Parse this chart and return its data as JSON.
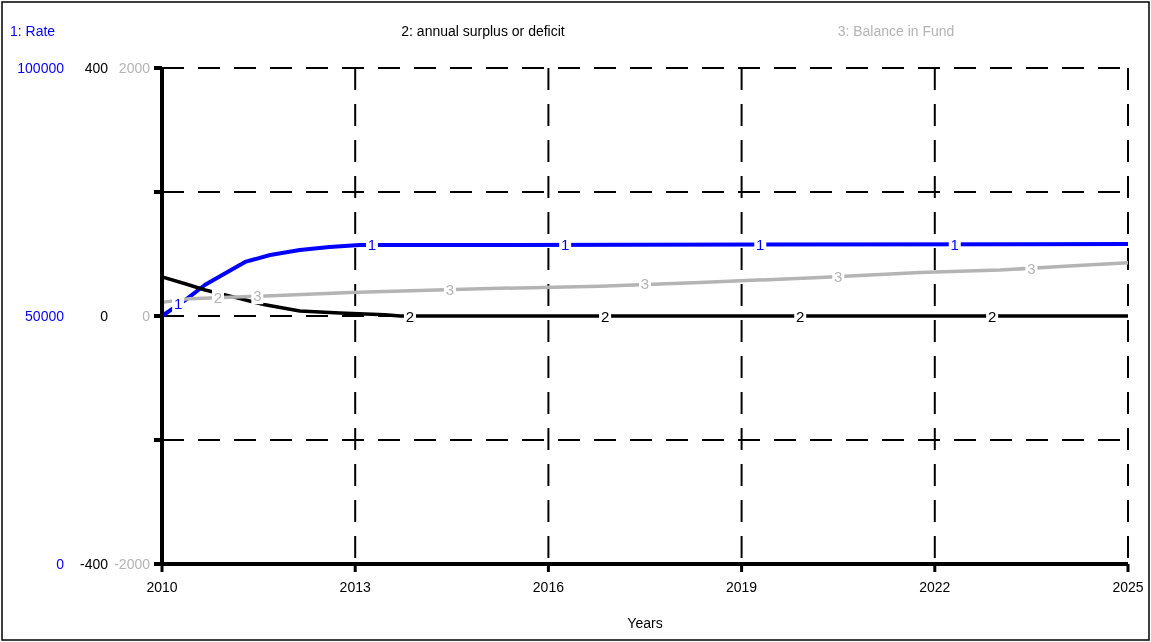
{
  "chart_data": {
    "type": "line",
    "xlabel": "Years",
    "x": [
      2010,
      2010.36,
      2010.67,
      2011.29,
      2011.68,
      2012.14,
      2012.6,
      2013.07,
      2025
    ],
    "series": [
      {
        "name": "1: Rate",
        "color": "#0000ff",
        "axis": "y",
        "values": [
          50000,
          53200,
          56300,
          60900,
          62300,
          63300,
          63900,
          64300,
          64500
        ]
      },
      {
        "name": "2: annual surplus or deficit",
        "color": "#000000",
        "axis": "y2",
        "x": [
          2010,
          2010.36,
          2010.67,
          2011.06,
          2011.6,
          2012.14,
          2012.76,
          2013.46,
          2013.7,
          2025
        ],
        "values": [
          63,
          52,
          42,
          32,
          18,
          8,
          5,
          2,
          0,
          0
        ]
      },
      {
        "name": "3: Balance in Fund",
        "color": "#b4b4b4",
        "axis": "y3",
        "x": [
          2010,
          2010.43,
          2011.52,
          2012.92,
          2014.94,
          2016.8,
          2018.35,
          2020.22,
          2021.77,
          2023.01,
          2023.95,
          2025
        ],
        "values": [
          110,
          140,
          160,
          190,
          220,
          240,
          270,
          310,
          350,
          370,
          400,
          430
        ]
      }
    ],
    "xlim": [
      2010,
      2025
    ],
    "xticks": [
      2010,
      2013,
      2016,
      2019,
      2022,
      2025
    ],
    "ylim": [
      0,
      100000
    ],
    "yticks": [
      0,
      {
        "value": 25000,
        "label": null
      },
      50000,
      {
        "value": 75000,
        "label": null
      },
      100000
    ],
    "y2lim": [
      -400,
      400
    ],
    "y2ticks": [
      -400,
      0,
      400
    ],
    "y3lim": [
      -2000,
      2000
    ],
    "y3ticks": [
      -2000,
      0,
      2000
    ],
    "grid": true,
    "legend": "top",
    "line_style": "solid",
    "annotations": [
      {
        "text": "1",
        "x": 2010.25,
        "y": 52600
      },
      {
        "text": "1",
        "x": 2013.26,
        "y": 64500
      },
      {
        "text": "1",
        "x": 2016.26,
        "y": 64500
      },
      {
        "text": "1",
        "x": 2019.29,
        "y": 64500
      },
      {
        "text": "1",
        "x": 2022.31,
        "y": 64500
      },
      {
        "text": "2",
        "x": 2010.87,
        "y": 53800
      },
      {
        "text": "2",
        "x": 2013.85,
        "y": 50000
      },
      {
        "text": "2",
        "x": 2016.88,
        "y": 50000
      },
      {
        "text": "2",
        "x": 2019.91,
        "y": 50000
      },
      {
        "text": "2",
        "x": 2022.89,
        "y": 50000
      },
      {
        "text": "3",
        "x": 2011.48,
        "y": 54200
      },
      {
        "text": "3",
        "x": 2014.47,
        "y": 55400
      },
      {
        "text": "3",
        "x": 2017.5,
        "y": 56600
      },
      {
        "text": "3",
        "x": 2020.5,
        "y": 57900
      },
      {
        "text": "3",
        "x": 2023.5,
        "y": 59600
      }
    ]
  }
}
